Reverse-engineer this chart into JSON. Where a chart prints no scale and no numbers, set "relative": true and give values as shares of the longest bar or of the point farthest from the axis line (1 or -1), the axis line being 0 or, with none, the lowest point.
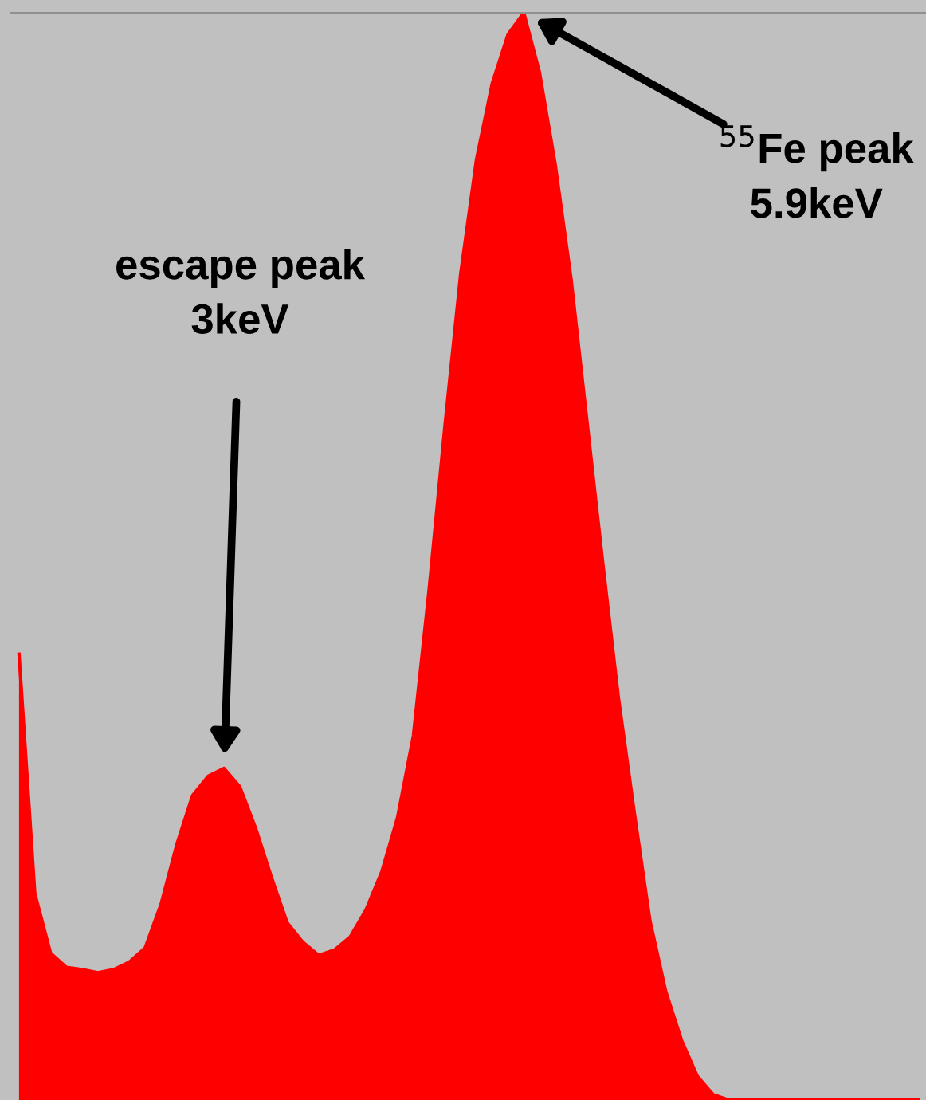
{
  "chart_data": {
    "type": "area",
    "relative": true,
    "color": "#ff0000",
    "categories": [
      null,
      null,
      null,
      null,
      null,
      null,
      null,
      null,
      null,
      null,
      null,
      null,
      null,
      null,
      null,
      null,
      null,
      null,
      null,
      null,
      null,
      null,
      null,
      null,
      null,
      null,
      null,
      null,
      null,
      null,
      null,
      null,
      null,
      null,
      null,
      null,
      null,
      null,
      null,
      null,
      null,
      null,
      null,
      null,
      null,
      null,
      null,
      null,
      null,
      null,
      null,
      null,
      null,
      null,
      null,
      null,
      null,
      null
    ],
    "values": [
      0.41,
      0.19,
      0.135,
      0.122,
      0.12,
      0.117,
      0.12,
      0.127,
      0.14,
      0.18,
      0.235,
      0.28,
      0.298,
      0.305,
      0.288,
      0.25,
      0.205,
      0.163,
      0.145,
      0.133,
      0.138,
      0.15,
      0.175,
      0.21,
      0.26,
      0.335,
      0.47,
      0.62,
      0.76,
      0.865,
      0.935,
      0.98,
      1,
      0.945,
      0.86,
      0.755,
      0.625,
      0.495,
      0.37,
      0.265,
      0.165,
      0.1,
      0.055,
      0.022,
      0.005,
      0,
      0,
      0,
      0,
      0,
      0,
      0,
      0,
      0,
      0,
      0,
      0,
      0
    ],
    "annotations": [
      "escape peak\n3keV",
      "$^{55}$Fe peak\n5.9keV"
    ]
  }
}
